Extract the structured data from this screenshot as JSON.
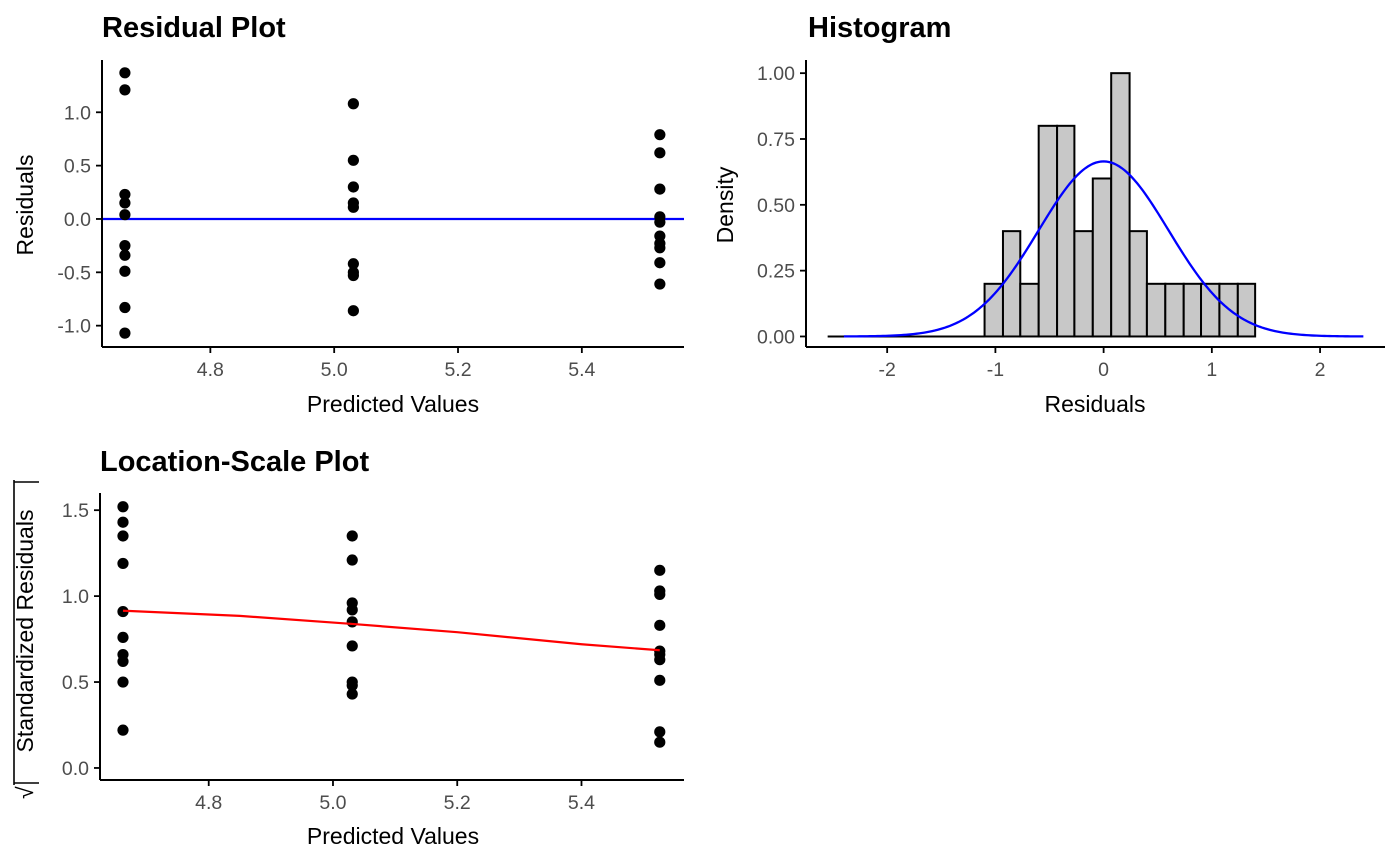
{
  "colors": {
    "points": "#000000",
    "axis": "#000000",
    "tick_text": "#4d4d4d",
    "reference_line": "#0000ff",
    "smooth_line": "#ff0000",
    "density_curve": "#0000ff",
    "bar_fill": "#c8c8c8",
    "bar_stroke": "#000000"
  },
  "chart_data": [
    {
      "type": "scatter",
      "title": "Residual Plot",
      "xlabel": "Predicted Values",
      "ylabel": "Residuals",
      "xlim": [
        4.625,
        5.565
      ],
      "ylim": [
        -1.2,
        1.49
      ],
      "xticks": [
        4.8,
        5.0,
        5.2,
        5.4
      ],
      "xtick_labels": [
        "4.8",
        "5.0",
        "5.2",
        "5.4"
      ],
      "yticks": [
        -1.0,
        -0.5,
        0.0,
        0.5,
        1.0
      ],
      "ytick_labels": [
        "-1.0",
        "-0.5",
        "0.0",
        "0.5",
        "1.0"
      ],
      "grid": false,
      "reference_line": {
        "y": 0
      },
      "points": [
        {
          "x": 4.662,
          "y": 1.37
        },
        {
          "x": 4.662,
          "y": 1.21
        },
        {
          "x": 4.662,
          "y": 0.23
        },
        {
          "x": 4.662,
          "y": 0.15
        },
        {
          "x": 4.662,
          "y": 0.04
        },
        {
          "x": 4.662,
          "y": -0.25
        },
        {
          "x": 4.662,
          "y": -0.34
        },
        {
          "x": 4.662,
          "y": -0.49
        },
        {
          "x": 4.662,
          "y": -0.83
        },
        {
          "x": 4.662,
          "y": -1.07
        },
        {
          "x": 5.031,
          "y": 1.08
        },
        {
          "x": 5.031,
          "y": 0.55
        },
        {
          "x": 5.031,
          "y": 0.3
        },
        {
          "x": 5.031,
          "y": 0.15
        },
        {
          "x": 5.031,
          "y": 0.11
        },
        {
          "x": 5.031,
          "y": -0.42
        },
        {
          "x": 5.031,
          "y": -0.5
        },
        {
          "x": 5.031,
          "y": -0.53
        },
        {
          "x": 5.031,
          "y": -0.86
        },
        {
          "x": 5.526,
          "y": 0.79
        },
        {
          "x": 5.526,
          "y": 0.62
        },
        {
          "x": 5.526,
          "y": 0.28
        },
        {
          "x": 5.526,
          "y": 0.02
        },
        {
          "x": 5.526,
          "y": -0.03
        },
        {
          "x": 5.526,
          "y": -0.16
        },
        {
          "x": 5.526,
          "y": -0.23
        },
        {
          "x": 5.526,
          "y": -0.27
        },
        {
          "x": 5.526,
          "y": -0.41
        },
        {
          "x": 5.526,
          "y": -0.61
        }
      ]
    },
    {
      "type": "bar",
      "title": "Histogram",
      "xlabel": "Residuals",
      "ylabel": "Density",
      "xlim": [
        -2.75,
        2.6
      ],
      "ylim": [
        -0.04,
        1.05
      ],
      "xticks": [
        -2,
        -1,
        0,
        1,
        2
      ],
      "xtick_labels": [
        "-2",
        "-1",
        "0",
        "1",
        "2"
      ],
      "yticks": [
        0.0,
        0.25,
        0.5,
        0.75,
        1.0
      ],
      "ytick_labels": [
        "0.00",
        "0.25",
        "0.50",
        "0.75",
        "1.00"
      ],
      "grid": false,
      "bins": [
        {
          "x0": -2.55,
          "x1": -1.1,
          "density": 0.0
        },
        {
          "x0": -1.1,
          "x1": -0.93,
          "density": 0.2
        },
        {
          "x0": -0.93,
          "x1": -0.77,
          "density": 0.4
        },
        {
          "x0": -0.77,
          "x1": -0.6,
          "density": 0.2
        },
        {
          "x0": -0.6,
          "x1": -0.43,
          "density": 0.8
        },
        {
          "x0": -0.43,
          "x1": -0.27,
          "density": 0.8
        },
        {
          "x0": -0.27,
          "x1": -0.1,
          "density": 0.4
        },
        {
          "x0": -0.1,
          "x1": 0.07,
          "density": 0.6
        },
        {
          "x0": 0.07,
          "x1": 0.24,
          "density": 1.0
        },
        {
          "x0": 0.24,
          "x1": 0.4,
          "density": 0.4
        },
        {
          "x0": 0.4,
          "x1": 0.57,
          "density": 0.2
        },
        {
          "x0": 0.57,
          "x1": 0.74,
          "density": 0.2
        },
        {
          "x0": 0.74,
          "x1": 0.9,
          "density": 0.2
        },
        {
          "x0": 0.9,
          "x1": 1.07,
          "density": 0.2
        },
        {
          "x0": 1.07,
          "x1": 1.24,
          "density": 0.2
        },
        {
          "x0": 1.24,
          "x1": 1.4,
          "density": 0.2
        }
      ],
      "density_curve": {
        "mean": 0.0,
        "sd": 0.6,
        "x_from": -2.4,
        "x_to": 2.4
      }
    },
    {
      "type": "scatter",
      "title": "Location-Scale Plot",
      "xlabel": "Predicted Values",
      "ylabel": "√|Standardized Residuals|",
      "ylabel_radical": "√",
      "ylabel_text": "Standardized Residuals",
      "xlim": [
        4.625,
        5.565
      ],
      "ylim": [
        -0.07,
        1.6
      ],
      "xticks": [
        4.8,
        5.0,
        5.2,
        5.4
      ],
      "xtick_labels": [
        "4.8",
        "5.0",
        "5.2",
        "5.4"
      ],
      "yticks": [
        0.0,
        0.5,
        1.0,
        1.5
      ],
      "ytick_labels": [
        "0.0",
        "0.5",
        "1.0",
        "1.5"
      ],
      "grid": false,
      "points": [
        {
          "x": 4.662,
          "y": 1.52
        },
        {
          "x": 4.662,
          "y": 1.43
        },
        {
          "x": 4.662,
          "y": 1.35
        },
        {
          "x": 4.662,
          "y": 1.19
        },
        {
          "x": 4.662,
          "y": 0.91
        },
        {
          "x": 4.662,
          "y": 0.76
        },
        {
          "x": 4.662,
          "y": 0.66
        },
        {
          "x": 4.662,
          "y": 0.62
        },
        {
          "x": 4.662,
          "y": 0.5
        },
        {
          "x": 4.662,
          "y": 0.22
        },
        {
          "x": 5.031,
          "y": 1.35
        },
        {
          "x": 5.031,
          "y": 1.21
        },
        {
          "x": 5.031,
          "y": 0.96
        },
        {
          "x": 5.031,
          "y": 0.92
        },
        {
          "x": 5.031,
          "y": 0.85
        },
        {
          "x": 5.031,
          "y": 0.71
        },
        {
          "x": 5.031,
          "y": 0.5
        },
        {
          "x": 5.031,
          "y": 0.48
        },
        {
          "x": 5.031,
          "y": 0.43
        },
        {
          "x": 5.526,
          "y": 1.15
        },
        {
          "x": 5.526,
          "y": 1.03
        },
        {
          "x": 5.526,
          "y": 1.01
        },
        {
          "x": 5.526,
          "y": 0.83
        },
        {
          "x": 5.526,
          "y": 0.68
        },
        {
          "x": 5.526,
          "y": 0.66
        },
        {
          "x": 5.526,
          "y": 0.63
        },
        {
          "x": 5.526,
          "y": 0.51
        },
        {
          "x": 5.526,
          "y": 0.21
        },
        {
          "x": 5.526,
          "y": 0.15
        }
      ],
      "smooth_line": [
        {
          "x": 4.662,
          "y": 0.915
        },
        {
          "x": 4.85,
          "y": 0.885
        },
        {
          "x": 5.031,
          "y": 0.838
        },
        {
          "x": 5.2,
          "y": 0.79
        },
        {
          "x": 5.4,
          "y": 0.72
        },
        {
          "x": 5.526,
          "y": 0.685
        }
      ]
    }
  ]
}
